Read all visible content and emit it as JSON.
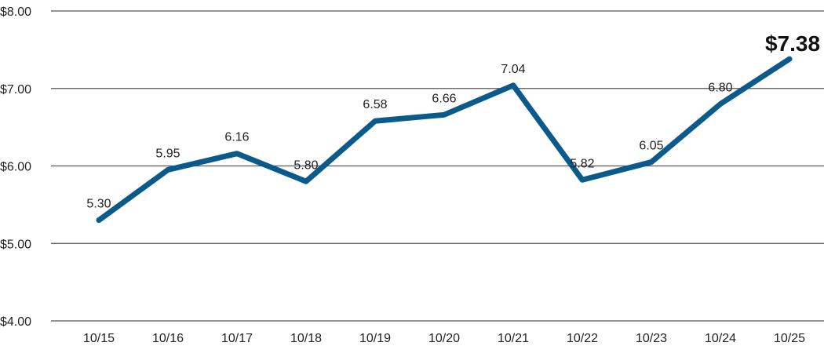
{
  "chart_data": {
    "type": "line",
    "title": "",
    "xlabel": "",
    "ylabel": "",
    "categories": [
      "10/15",
      "10/16",
      "10/17",
      "10/18",
      "10/19",
      "10/20",
      "10/21",
      "10/22",
      "10/23",
      "10/24",
      "10/25"
    ],
    "series": [
      {
        "name": "Price",
        "values": [
          5.3,
          5.95,
          6.16,
          5.8,
          6.58,
          6.66,
          7.04,
          5.82,
          6.05,
          6.8,
          7.38
        ]
      }
    ],
    "data_labels": [
      "5.30",
      "5.95",
      "6.16",
      "5.80",
      "6.58",
      "6.66",
      "7.04",
      "5.82",
      "6.05",
      "6.80",
      "$7.38"
    ],
    "yticks": [
      4,
      5,
      6,
      7,
      8
    ],
    "ytick_labels": [
      "$4.00",
      "$5.00",
      "$6.00",
      "$7.00",
      "$8.00"
    ],
    "ylim": [
      4,
      8
    ],
    "grid": true,
    "legend": "none",
    "line_color": "#0b5a8c",
    "grid_color": "#555555"
  }
}
